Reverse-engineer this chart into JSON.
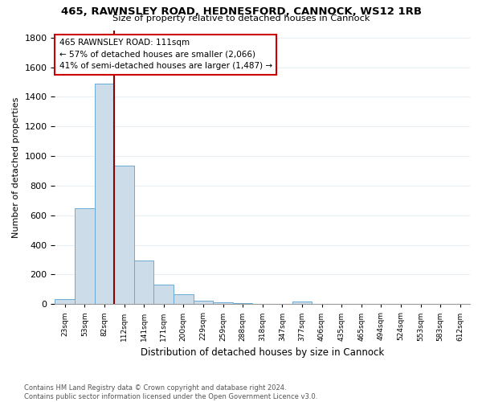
{
  "title1": "465, RAWNSLEY ROAD, HEDNESFORD, CANNOCK, WS12 1RB",
  "title2": "Size of property relative to detached houses in Cannock",
  "xlabel": "Distribution of detached houses by size in Cannock",
  "ylabel": "Number of detached properties",
  "footnote1": "Contains HM Land Registry data © Crown copyright and database right 2024.",
  "footnote2": "Contains public sector information licensed under the Open Government Licence v3.0.",
  "annotation_line1": "465 RAWNSLEY ROAD: 111sqm",
  "annotation_line2": "← 57% of detached houses are smaller (2,066)",
  "annotation_line3": "41% of semi-detached houses are larger (1,487) →",
  "bin_labels": [
    "23sqm",
    "53sqm",
    "82sqm",
    "112sqm",
    "141sqm",
    "171sqm",
    "200sqm",
    "229sqm",
    "259sqm",
    "288sqm",
    "318sqm",
    "347sqm",
    "377sqm",
    "406sqm",
    "435sqm",
    "465sqm",
    "494sqm",
    "524sqm",
    "553sqm",
    "583sqm",
    "612sqm"
  ],
  "bar_heights": [
    35,
    650,
    1490,
    935,
    295,
    130,
    65,
    22,
    15,
    5,
    2,
    1,
    18,
    0,
    0,
    0,
    0,
    0,
    0,
    0,
    0
  ],
  "bar_color": "#ccdce8",
  "bar_edge_color": "#6aaad4",
  "red_line_bin": 3,
  "ylim": [
    0,
    1850
  ],
  "yticks": [
    0,
    200,
    400,
    600,
    800,
    1000,
    1200,
    1400,
    1600,
    1800
  ],
  "background_color": "#ffffff",
  "grid_color": "#e8eef4",
  "fig_bg": "#ffffff"
}
